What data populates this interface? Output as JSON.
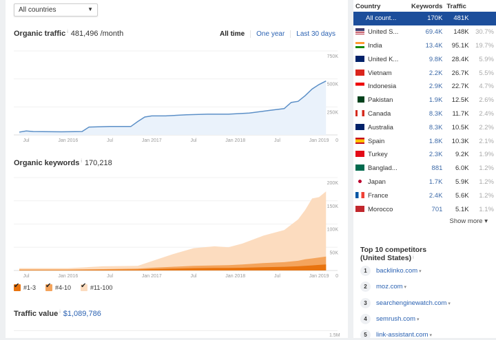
{
  "filter": {
    "country_select": "All countries"
  },
  "organic_traffic": {
    "label": "Organic traffic",
    "value": "481,496 /month",
    "tabs": [
      {
        "label": "All time",
        "active": true
      },
      {
        "label": "One year",
        "active": false
      },
      {
        "label": "Last 30 days",
        "active": false
      }
    ]
  },
  "organic_keywords": {
    "label": "Organic keywords",
    "value": "170,218",
    "legend": [
      "#1-3",
      "#4-10",
      "#11-100"
    ]
  },
  "traffic_value": {
    "label": "Traffic value",
    "value": "$1,089,786",
    "y_tick_top": "1.5M"
  },
  "colors": {
    "accent": "#1c4e9b",
    "link": "#2b62b2",
    "traffic_line": "#5b8fc7",
    "traffic_fill": "#eaf2fb",
    "kw_1_3": "#e8730e",
    "kw_4_10": "#f4a45c",
    "kw_11_100": "#fcdcbf"
  },
  "chart_data": [
    {
      "type": "area",
      "title": "Organic traffic",
      "x_ticks": [
        "Jul",
        "Jan 2016",
        "Jul",
        "Jan 2017",
        "Jul",
        "Jan 2018",
        "Jul",
        "Jan 2019"
      ],
      "y_ticks": [
        "0",
        "250K",
        "500K",
        "750K"
      ],
      "ylim": [
        0,
        750000
      ],
      "grid": true,
      "x": [
        "2015-06",
        "2015-07",
        "2015-08",
        "2015-12",
        "2016-03",
        "2016-04",
        "2016-07",
        "2016-10",
        "2016-11",
        "2016-12",
        "2017-01",
        "2017-03",
        "2017-06",
        "2017-09",
        "2017-12",
        "2018-03",
        "2018-06",
        "2018-08",
        "2018-09",
        "2018-10",
        "2018-11",
        "2018-12",
        "2019-01",
        "2019-02"
      ],
      "values": [
        25000,
        35000,
        30000,
        28000,
        30000,
        70000,
        75000,
        75000,
        120000,
        160000,
        170000,
        170000,
        180000,
        185000,
        185000,
        195000,
        220000,
        235000,
        290000,
        300000,
        350000,
        410000,
        450000,
        481496
      ]
    },
    {
      "type": "area",
      "stacked": true,
      "title": "Organic keywords",
      "x_ticks": [
        "Jul",
        "Jan 2016",
        "Jul",
        "Jan 2017",
        "Jul",
        "Jan 2018",
        "Jul",
        "Jan 2019"
      ],
      "y_ticks": [
        "0",
        "50K",
        "100K",
        "150K",
        "200K"
      ],
      "ylim": [
        0,
        200000
      ],
      "grid": true,
      "x": [
        "2015-06",
        "2016-01",
        "2016-06",
        "2016-11",
        "2017-01",
        "2017-04",
        "2017-07",
        "2017-10",
        "2017-12",
        "2018-02",
        "2018-05",
        "2018-08",
        "2018-10",
        "2018-11",
        "2018-12",
        "2019-01",
        "2019-02"
      ],
      "series": [
        {
          "name": "#1-3",
          "values": [
            1000,
            1000,
            1500,
            2000,
            3000,
            4000,
            5000,
            5500,
            5500,
            6000,
            7000,
            8000,
            9000,
            10000,
            11000,
            12000,
            13000
          ]
        },
        {
          "name": "#4-10",
          "values": [
            1000,
            1000,
            1500,
            2000,
            3000,
            4000,
            5000,
            5500,
            6000,
            7000,
            9000,
            10000,
            12000,
            14000,
            15000,
            16000,
            17000
          ]
        },
        {
          "name": "#11-100",
          "values": [
            3000,
            3000,
            6000,
            6000,
            14000,
            27000,
            38000,
            41000,
            38500,
            45000,
            59000,
            69000,
            89000,
            106000,
            129000,
            130000,
            140218
          ]
        }
      ]
    }
  ],
  "countries": {
    "headers": [
      "Country",
      "Keywords",
      "Traffic"
    ],
    "rows": [
      {
        "name": "All count...",
        "kw": "170K",
        "tr": "481K",
        "pc": "",
        "flag": ""
      },
      {
        "name": "United S...",
        "kw": "69.4K",
        "tr": "148K",
        "pc": "30.7%",
        "flag": "us"
      },
      {
        "name": "India",
        "kw": "13.4K",
        "tr": "95.1K",
        "pc": "19.7%",
        "flag": "in"
      },
      {
        "name": "United K...",
        "kw": "9.8K",
        "tr": "28.4K",
        "pc": "5.9%",
        "flag": "gb"
      },
      {
        "name": "Vietnam",
        "kw": "2.2K",
        "tr": "26.7K",
        "pc": "5.5%",
        "flag": "vn"
      },
      {
        "name": "Indonesia",
        "kw": "2.9K",
        "tr": "22.7K",
        "pc": "4.7%",
        "flag": "id"
      },
      {
        "name": "Pakistan",
        "kw": "1.9K",
        "tr": "12.5K",
        "pc": "2.6%",
        "flag": "pk"
      },
      {
        "name": "Canada",
        "kw": "8.3K",
        "tr": "11.7K",
        "pc": "2.4%",
        "flag": "ca"
      },
      {
        "name": "Australia",
        "kw": "8.3K",
        "tr": "10.5K",
        "pc": "2.2%",
        "flag": "au"
      },
      {
        "name": "Spain",
        "kw": "1.8K",
        "tr": "10.3K",
        "pc": "2.1%",
        "flag": "es"
      },
      {
        "name": "Turkey",
        "kw": "2.3K",
        "tr": "9.2K",
        "pc": "1.9%",
        "flag": "tr"
      },
      {
        "name": "Banglad...",
        "kw": "881",
        "tr": "6.0K",
        "pc": "1.2%",
        "flag": "bd"
      },
      {
        "name": "Japan",
        "kw": "1.7K",
        "tr": "5.9K",
        "pc": "1.2%",
        "flag": "jp"
      },
      {
        "name": "France",
        "kw": "2.4K",
        "tr": "5.6K",
        "pc": "1.2%",
        "flag": "fr"
      },
      {
        "name": "Morocco",
        "kw": "701",
        "tr": "5.1K",
        "pc": "1.1%",
        "flag": "ma"
      }
    ],
    "show_more": "Show more ▾"
  },
  "competitors": {
    "title": "Top 10 competitors",
    "subtitle": "(United States)",
    "items": [
      "backlinko.com",
      "moz.com",
      "searchenginewatch.com",
      "semrush.com",
      "link-assistant.com"
    ]
  }
}
